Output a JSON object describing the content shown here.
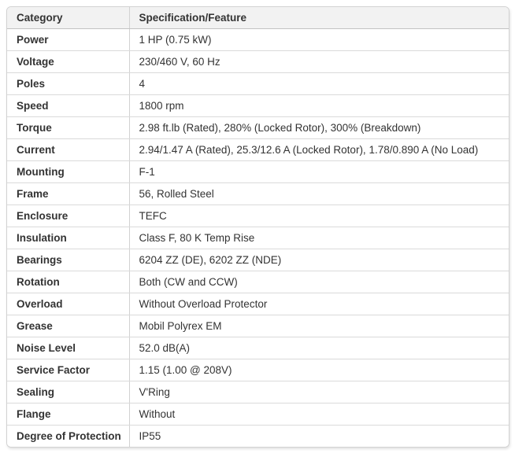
{
  "colors": {
    "header_bg": "#f2f2f2",
    "outer_border": "#d2d2d2",
    "header_border": "#c2c2c2",
    "row_border": "#dadada",
    "text": "#333333",
    "background": "#ffffff"
  },
  "table": {
    "columns": [
      {
        "label": "Category"
      },
      {
        "label": "Specification/Feature"
      }
    ],
    "rows": [
      {
        "category": "Power",
        "value": "1 HP (0.75 kW)"
      },
      {
        "category": "Voltage",
        "value": "230/460 V, 60 Hz"
      },
      {
        "category": "Poles",
        "value": "4"
      },
      {
        "category": "Speed",
        "value": "1800 rpm"
      },
      {
        "category": "Torque",
        "value": "2.98 ft.lb (Rated), 280% (Locked Rotor), 300% (Breakdown)"
      },
      {
        "category": "Current",
        "value": "2.94/1.47 A (Rated), 25.3/12.6 A (Locked Rotor), 1.78/0.890 A (No Load)"
      },
      {
        "category": "Mounting",
        "value": "F-1"
      },
      {
        "category": "Frame",
        "value": "56, Rolled Steel"
      },
      {
        "category": "Enclosure",
        "value": "TEFC"
      },
      {
        "category": "Insulation",
        "value": "Class F, 80 K Temp Rise"
      },
      {
        "category": "Bearings",
        "value": "6204 ZZ (DE), 6202 ZZ (NDE)"
      },
      {
        "category": "Rotation",
        "value": "Both (CW and CCW)"
      },
      {
        "category": "Overload",
        "value": "Without Overload Protector"
      },
      {
        "category": "Grease",
        "value": "Mobil Polyrex EM"
      },
      {
        "category": "Noise Level",
        "value": "52.0 dB(A)"
      },
      {
        "category": "Service Factor",
        "value": "1.15 (1.00 @ 208V)"
      },
      {
        "category": "Sealing",
        "value": "V'Ring"
      },
      {
        "category": "Flange",
        "value": "Without"
      },
      {
        "category": "Degree of Protection",
        "value": "IP55"
      }
    ]
  }
}
